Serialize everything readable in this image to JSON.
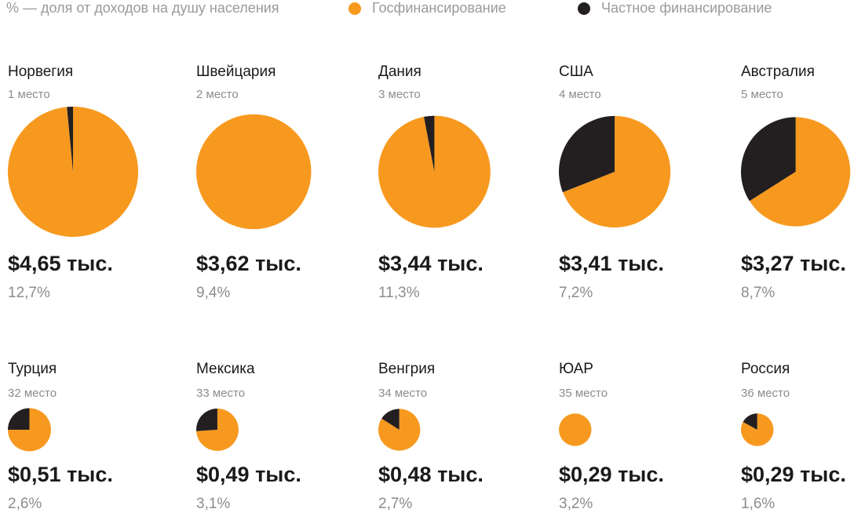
{
  "chart_data": {
    "type": "pie",
    "note": "% — доля от доходов на душу населения",
    "series": [
      {
        "name": "Госфинансирование",
        "color": "#f7991f"
      },
      {
        "name": "Частное финансирование",
        "color": "#231f20"
      }
    ],
    "countries": [
      {
        "name": "Норвегия",
        "rank": "1 место",
        "values": [
          98.5,
          1.5
        ],
        "amount": 4.65,
        "amount_label": "$4,65 тыс.",
        "share": 12.7,
        "share_label": "12,7%"
      },
      {
        "name": "Швейцария",
        "rank": "2 место",
        "values": [
          100,
          0
        ],
        "amount": 3.62,
        "amount_label": "$3,62 тыс.",
        "share": 9.4,
        "share_label": "9,4%"
      },
      {
        "name": "Дания",
        "rank": "3 место",
        "values": [
          97,
          3
        ],
        "amount": 3.44,
        "amount_label": "$3,44 тыс.",
        "share": 11.3,
        "share_label": "11,3%"
      },
      {
        "name": "США",
        "rank": "4 место",
        "values": [
          69,
          31
        ],
        "amount": 3.41,
        "amount_label": "$3,41 тыс.",
        "share": 7.2,
        "share_label": "7,2%"
      },
      {
        "name": "Австралия",
        "rank": "5 место",
        "values": [
          66,
          34
        ],
        "amount": 3.27,
        "amount_label": "$3,27 тыс.",
        "share": 8.7,
        "share_label": "8,7%"
      },
      {
        "name": "Турция",
        "rank": "32 место",
        "values": [
          75,
          25
        ],
        "amount": 0.51,
        "amount_label": "$0,51 тыс.",
        "share": 2.6,
        "share_label": "2,6%"
      },
      {
        "name": "Мексика",
        "rank": "33 место",
        "values": [
          74,
          26
        ],
        "amount": 0.49,
        "amount_label": "$0,49 тыс.",
        "share": 3.1,
        "share_label": "3,1%"
      },
      {
        "name": "Венгрия",
        "rank": "34 место",
        "values": [
          84,
          16
        ],
        "amount": 0.48,
        "amount_label": "$0,48 тыс.",
        "share": 2.7,
        "share_label": "2,7%"
      },
      {
        "name": "ЮАР",
        "rank": "35 место",
        "values": [
          100,
          0
        ],
        "amount": 0.29,
        "amount_label": "$0,29 тыс.",
        "share": 3.2,
        "share_label": "3,2%"
      },
      {
        "name": "Россия",
        "rank": "36 место",
        "values": [
          83,
          17
        ],
        "amount": 0.29,
        "amount_label": "$0,29 тыс.",
        "share": 1.6,
        "share_label": "1,6%"
      }
    ]
  }
}
